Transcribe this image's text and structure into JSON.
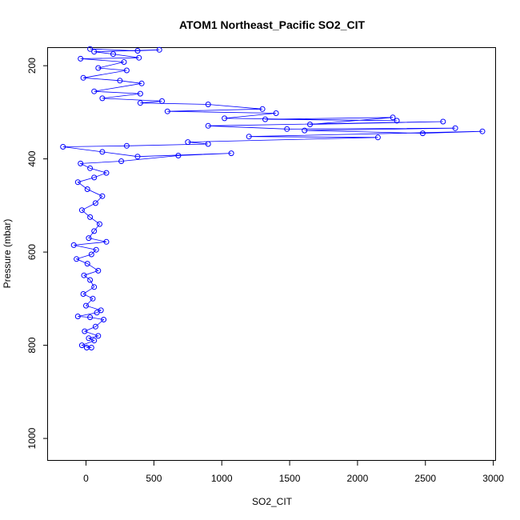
{
  "chart_data": {
    "type": "line",
    "title": "ATOM1 Northeast_Pacific SO2_CIT",
    "xlabel": "SO2_CIT",
    "ylabel": "Pressure (mbar)",
    "xlim": [
      -280,
      3020
    ],
    "ylim": [
      1048,
      162
    ],
    "y_reversed": true,
    "grid": false,
    "color": "#0000ff",
    "marker": "open-circle",
    "x_ticks": [
      0,
      500,
      1000,
      1500,
      2000,
      2500,
      3000
    ],
    "x_tick_labels": [
      "0",
      "500",
      "1000",
      "1500",
      "2000",
      "2500",
      "3000"
    ],
    "y_ticks": [
      200,
      400,
      600,
      800,
      1000
    ],
    "y_tick_labels": [
      "200",
      "400",
      "600",
      "800",
      "1000"
    ],
    "series": [
      {
        "values": [
          {
            "x": 5,
            "y": 805
          },
          {
            "x": 40,
            "y": 805
          },
          {
            "x": -30,
            "y": 800
          },
          {
            "x": 60,
            "y": 790
          },
          {
            "x": 20,
            "y": 785
          },
          {
            "x": 90,
            "y": 780
          },
          {
            "x": -10,
            "y": 770
          },
          {
            "x": 70,
            "y": 760
          },
          {
            "x": 130,
            "y": 745
          },
          {
            "x": 30,
            "y": 740
          },
          {
            "x": -60,
            "y": 738
          },
          {
            "x": 80,
            "y": 730
          },
          {
            "x": 110,
            "y": 725
          },
          {
            "x": 0,
            "y": 715
          },
          {
            "x": 50,
            "y": 700
          },
          {
            "x": -20,
            "y": 690
          },
          {
            "x": 60,
            "y": 675
          },
          {
            "x": 30,
            "y": 660
          },
          {
            "x": -15,
            "y": 650
          },
          {
            "x": 90,
            "y": 640
          },
          {
            "x": 10,
            "y": 625
          },
          {
            "x": -70,
            "y": 615
          },
          {
            "x": 40,
            "y": 605
          },
          {
            "x": 75,
            "y": 595
          },
          {
            "x": -90,
            "y": 585
          },
          {
            "x": 150,
            "y": 578
          },
          {
            "x": 20,
            "y": 570
          },
          {
            "x": 60,
            "y": 555
          },
          {
            "x": 100,
            "y": 540
          },
          {
            "x": 30,
            "y": 525
          },
          {
            "x": -30,
            "y": 510
          },
          {
            "x": 70,
            "y": 495
          },
          {
            "x": 120,
            "y": 480
          },
          {
            "x": 10,
            "y": 465
          },
          {
            "x": -60,
            "y": 450
          },
          {
            "x": 60,
            "y": 440
          },
          {
            "x": 150,
            "y": 430
          },
          {
            "x": 30,
            "y": 420
          },
          {
            "x": -40,
            "y": 410
          },
          {
            "x": 260,
            "y": 405
          },
          {
            "x": 680,
            "y": 393
          },
          {
            "x": 1070,
            "y": 388
          },
          {
            "x": 380,
            "y": 395
          },
          {
            "x": 120,
            "y": 385
          },
          {
            "x": -170,
            "y": 374
          },
          {
            "x": 300,
            "y": 372
          },
          {
            "x": 900,
            "y": 368
          },
          {
            "x": 750,
            "y": 364
          },
          {
            "x": 2150,
            "y": 354
          },
          {
            "x": 1200,
            "y": 352
          },
          {
            "x": 2920,
            "y": 341
          },
          {
            "x": 2480,
            "y": 345
          },
          {
            "x": 1610,
            "y": 339
          },
          {
            "x": 2720,
            "y": 334
          },
          {
            "x": 1480,
            "y": 336
          },
          {
            "x": 900,
            "y": 329
          },
          {
            "x": 2630,
            "y": 320
          },
          {
            "x": 1650,
            "y": 326
          },
          {
            "x": 2260,
            "y": 311
          },
          {
            "x": 1320,
            "y": 315
          },
          {
            "x": 2290,
            "y": 318
          },
          {
            "x": 1020,
            "y": 313
          },
          {
            "x": 1400,
            "y": 302
          },
          {
            "x": 600,
            "y": 298
          },
          {
            "x": 1300,
            "y": 293
          },
          {
            "x": 900,
            "y": 283
          },
          {
            "x": 400,
            "y": 280
          },
          {
            "x": 560,
            "y": 276
          },
          {
            "x": 120,
            "y": 270
          },
          {
            "x": 400,
            "y": 260
          },
          {
            "x": 60,
            "y": 255
          },
          {
            "x": 410,
            "y": 238
          },
          {
            "x": 250,
            "y": 232
          },
          {
            "x": -20,
            "y": 226
          },
          {
            "x": 300,
            "y": 210
          },
          {
            "x": 90,
            "y": 205
          },
          {
            "x": 280,
            "y": 192
          },
          {
            "x": -40,
            "y": 185
          },
          {
            "x": 390,
            "y": 183
          },
          {
            "x": 200,
            "y": 175
          },
          {
            "x": 60,
            "y": 170
          },
          {
            "x": 540,
            "y": 166
          },
          {
            "x": 380,
            "y": 168
          },
          {
            "x": 30,
            "y": 164
          }
        ]
      }
    ]
  }
}
